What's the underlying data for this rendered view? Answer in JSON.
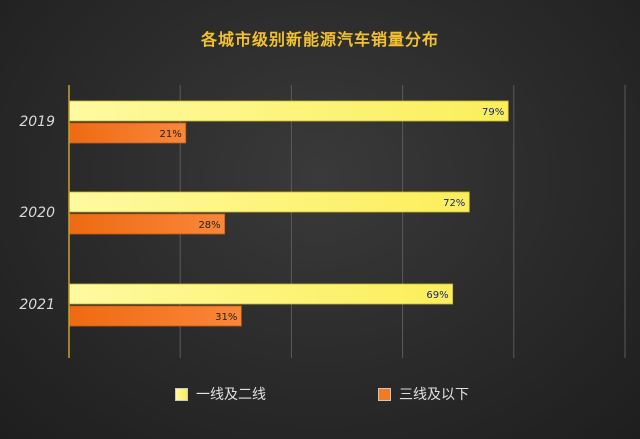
{
  "chart_data": {
    "type": "bar",
    "orientation": "horizontal",
    "title": "各城市级别新能源汽车销量分布",
    "categories": [
      "2019",
      "2020",
      "2021"
    ],
    "series": [
      {
        "name": "一线及二线",
        "values": [
          79,
          72,
          69
        ],
        "labels": [
          "79%",
          "72%",
          "69%"
        ],
        "color": "#fbee5a"
      },
      {
        "name": "三线及以下",
        "values": [
          21,
          28,
          31
        ],
        "labels": [
          "21%",
          "28%",
          "31%"
        ],
        "color": "#f37a20"
      }
    ],
    "xlim": [
      0,
      100
    ],
    "grid": true,
    "legend": "bottom"
  },
  "colors": {
    "title": "#f2c12e",
    "axis": "#c9a227",
    "grid": "#5a5a5a",
    "label_on_yellow": "#1a237e",
    "label_on_orange": "#222222"
  }
}
